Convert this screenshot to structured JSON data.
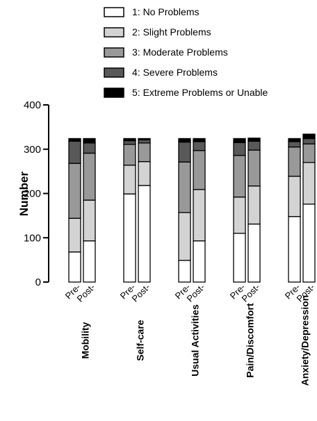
{
  "chart_data": {
    "type": "bar",
    "stacked": true,
    "title": "",
    "xlabel": "",
    "ylabel": "Number",
    "ylim": [
      0,
      400
    ],
    "yticks": [
      "0",
      "100",
      "200",
      "300",
      "400"
    ],
    "categories": [
      "Mobility",
      "Self-care",
      "Usual Activities",
      "Pain/Discomfort",
      "Anxiety/Depression"
    ],
    "groups": [
      "Pre-",
      "Post-"
    ],
    "legend_position": "top",
    "series": [
      {
        "name": "1: No Problems",
        "color": "#ffffff",
        "values": [
          [
            68,
            93
          ],
          [
            199,
            218
          ],
          [
            49,
            93
          ],
          [
            110,
            131
          ],
          [
            148,
            176
          ]
        ]
      },
      {
        "name": "2: Slight Problems",
        "color": "#d3d3d3",
        "values": [
          [
            76,
            92
          ],
          [
            65,
            54
          ],
          [
            108,
            116
          ],
          [
            82,
            86
          ],
          [
            91,
            94
          ]
        ]
      },
      {
        "name": "3: Moderate Problems",
        "color": "#999999",
        "values": [
          [
            124,
            106
          ],
          [
            47,
            42
          ],
          [
            114,
            88
          ],
          [
            94,
            81
          ],
          [
            66,
            42
          ]
        ]
      },
      {
        "name": "4: Severe Problems",
        "color": "#595959",
        "values": [
          [
            50,
            23
          ],
          [
            8,
            7
          ],
          [
            45,
            20
          ],
          [
            29,
            20
          ],
          [
            12,
            12
          ]
        ]
      },
      {
        "name": "5: Extreme Problems or Unable",
        "color": "#000000",
        "values": [
          [
            6,
            10
          ],
          [
            5,
            3
          ],
          [
            8,
            7
          ],
          [
            9,
            7
          ],
          [
            7,
            10
          ]
        ]
      }
    ]
  }
}
